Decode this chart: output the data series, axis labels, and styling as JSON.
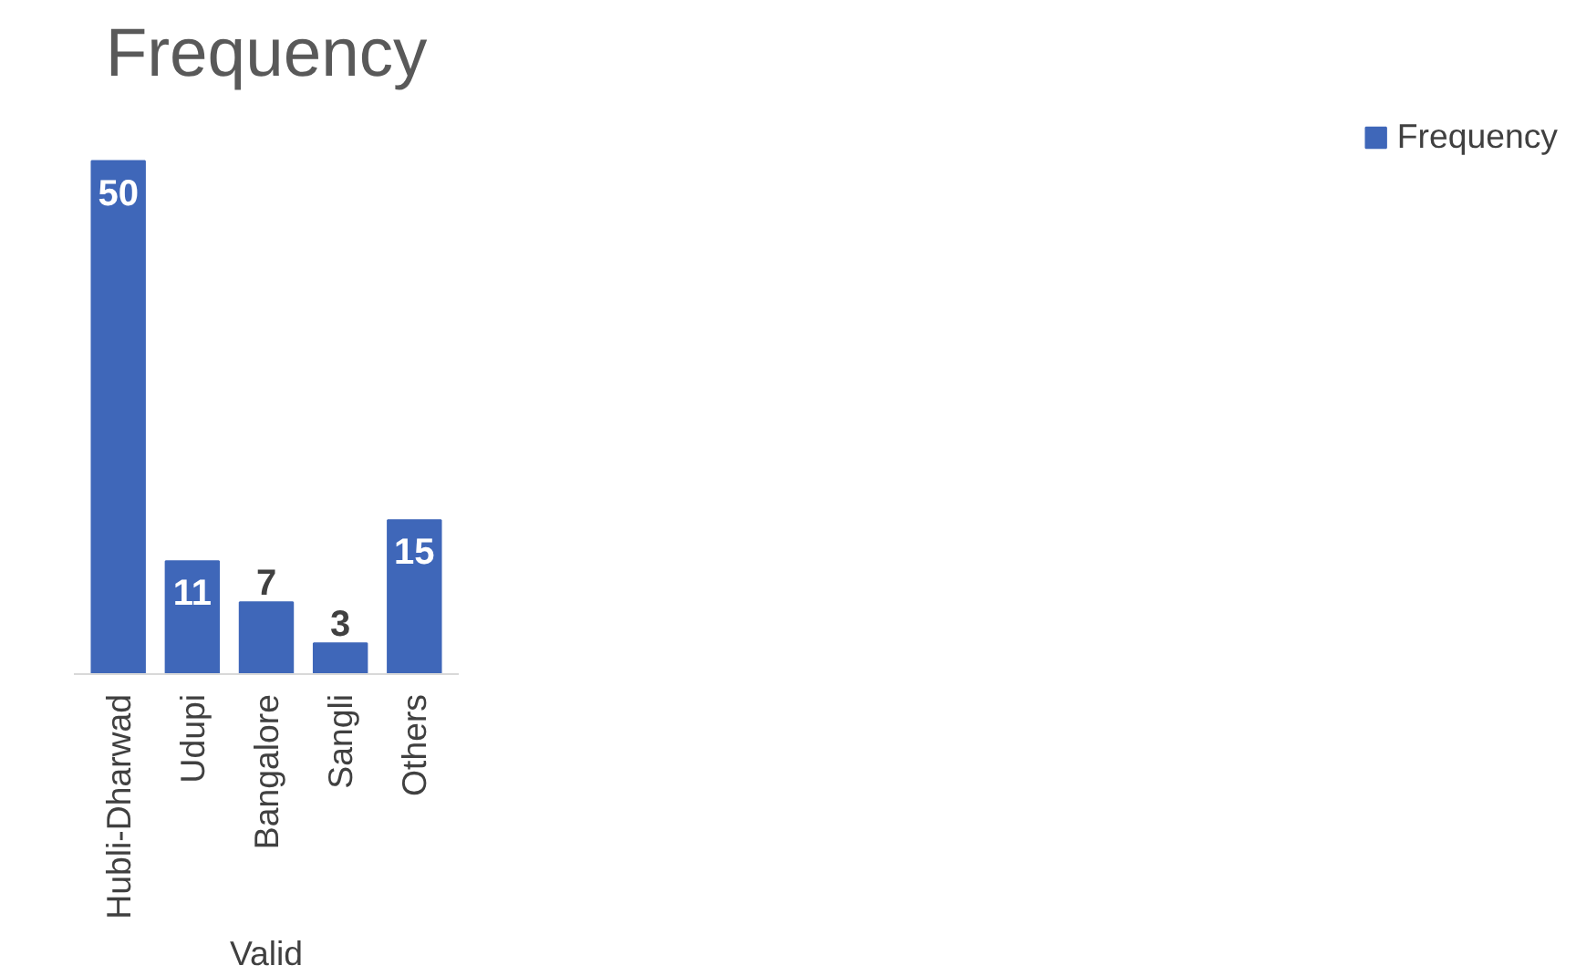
{
  "chart_data": {
    "type": "bar",
    "title": "Frequency",
    "xlabel": "Valid",
    "categories": [
      "Hubli-Dharwad",
      "Udupi",
      "Bangalore",
      "Sangli",
      "Others"
    ],
    "series": [
      {
        "name": "Frequency",
        "color": "#3f67b9",
        "values": [
          50,
          11,
          7,
          3,
          15
        ]
      }
    ],
    "data_labels": true,
    "legend": "right",
    "grid": false
  }
}
